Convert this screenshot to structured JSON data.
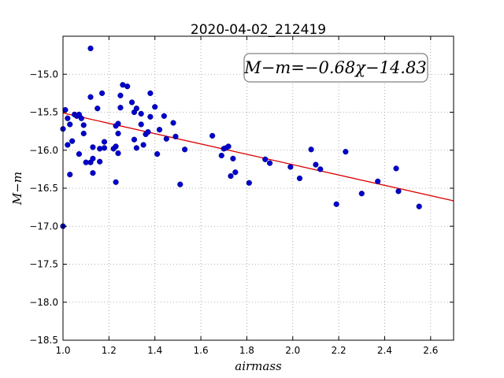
{
  "chart_data": {
    "type": "scatter",
    "title": "2020-04-02_212419",
    "xlabel": "airmass",
    "ylabel": "M−m",
    "xlim": [
      1.0,
      2.7
    ],
    "ylim": [
      -18.5,
      -14.5
    ],
    "x_ticks": [
      1.0,
      1.2,
      1.4,
      1.6,
      1.8,
      2.0,
      2.2,
      2.4,
      2.6
    ],
    "x_tick_labels": [
      "1.0",
      "1.2",
      "1.4",
      "1.6",
      "1.8",
      "2.0",
      "2.2",
      "2.4",
      "2.6"
    ],
    "y_ticks": [
      -15.0,
      -15.5,
      -16.0,
      -16.5,
      -17.0,
      -17.5,
      -18.0,
      -18.5
    ],
    "y_tick_labels": [
      "−15.0",
      "−15.5",
      "−16.0",
      "−16.5",
      "−17.0",
      "−17.5",
      "−18.0",
      "−18.5"
    ],
    "grid": true,
    "marker_color": "#0000cc",
    "fit_line_color": "#dd0000",
    "fit_line": {
      "slope": -0.68,
      "intercept": -14.83
    },
    "annotation": "M−m=−0.68χ−14.83",
    "points": [
      [
        1.0,
        -15.72
      ],
      [
        1.0,
        -17.0
      ],
      [
        1.01,
        -15.47
      ],
      [
        1.02,
        -15.58
      ],
      [
        1.02,
        -15.93
      ],
      [
        1.03,
        -16.32
      ],
      [
        1.03,
        -15.66
      ],
      [
        1.04,
        -15.88
      ],
      [
        1.05,
        -15.53
      ],
      [
        1.06,
        -15.55
      ],
      [
        1.07,
        -15.53
      ],
      [
        1.07,
        -16.05
      ],
      [
        1.08,
        -15.58
      ],
      [
        1.09,
        -15.67
      ],
      [
        1.09,
        -15.78
      ],
      [
        1.1,
        -16.16
      ],
      [
        1.12,
        -14.66
      ],
      [
        1.12,
        -15.3
      ],
      [
        1.12,
        -16.16
      ],
      [
        1.13,
        -15.96
      ],
      [
        1.13,
        -16.11
      ],
      [
        1.13,
        -16.3
      ],
      [
        1.15,
        -15.45
      ],
      [
        1.16,
        -15.98
      ],
      [
        1.16,
        -16.15
      ],
      [
        1.17,
        -15.25
      ],
      [
        1.18,
        -15.97
      ],
      [
        1.18,
        -15.89
      ],
      [
        1.22,
        -15.98
      ],
      [
        1.23,
        -15.95
      ],
      [
        1.23,
        -16.42
      ],
      [
        1.23,
        -15.68
      ],
      [
        1.24,
        -15.65
      ],
      [
        1.24,
        -15.78
      ],
      [
        1.24,
        -16.04
      ],
      [
        1.25,
        -15.28
      ],
      [
        1.25,
        -15.44
      ],
      [
        1.26,
        -15.14
      ],
      [
        1.28,
        -15.16
      ],
      [
        1.3,
        -15.37
      ],
      [
        1.31,
        -15.5
      ],
      [
        1.31,
        -15.86
      ],
      [
        1.32,
        -15.45
      ],
      [
        1.32,
        -15.97
      ],
      [
        1.34,
        -15.52
      ],
      [
        1.34,
        -15.66
      ],
      [
        1.35,
        -15.93
      ],
      [
        1.36,
        -15.79
      ],
      [
        1.37,
        -15.76
      ],
      [
        1.38,
        -15.25
      ],
      [
        1.38,
        -15.56
      ],
      [
        1.4,
        -15.43
      ],
      [
        1.41,
        -16.05
      ],
      [
        1.42,
        -15.73
      ],
      [
        1.44,
        -15.55
      ],
      [
        1.45,
        -15.85
      ],
      [
        1.48,
        -15.64
      ],
      [
        1.49,
        -15.82
      ],
      [
        1.51,
        -16.45
      ],
      [
        1.53,
        -15.99
      ],
      [
        1.65,
        -15.81
      ],
      [
        1.69,
        -16.07
      ],
      [
        1.7,
        -15.98
      ],
      [
        1.71,
        -15.97
      ],
      [
        1.72,
        -15.95
      ],
      [
        1.73,
        -16.34
      ],
      [
        1.74,
        -16.11
      ],
      [
        1.75,
        -16.29
      ],
      [
        1.81,
        -16.43
      ],
      [
        1.88,
        -16.12
      ],
      [
        1.9,
        -16.17
      ],
      [
        1.99,
        -16.22
      ],
      [
        2.03,
        -16.37
      ],
      [
        2.08,
        -15.99
      ],
      [
        2.1,
        -16.19
      ],
      [
        2.12,
        -16.25
      ],
      [
        2.19,
        -16.71
      ],
      [
        2.23,
        -16.02
      ],
      [
        2.3,
        -16.57
      ],
      [
        2.37,
        -16.41
      ],
      [
        2.45,
        -16.24
      ],
      [
        2.46,
        -16.54
      ],
      [
        2.55,
        -16.74
      ]
    ]
  }
}
